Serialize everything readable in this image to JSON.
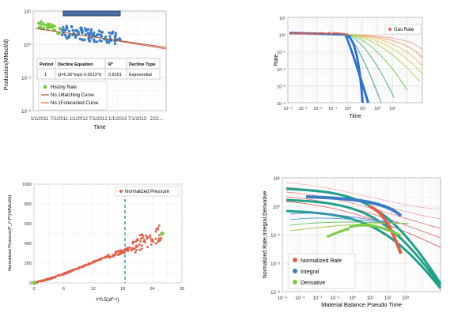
{
  "chart_data": [
    {
      "type": "scatter",
      "ylabel": "Production(MMscf/d)",
      "xlabel": "Time",
      "y_scale": "log",
      "ylim": [
        0.01,
        10
      ],
      "x_tick_labels": [
        "1/1/2011",
        "7/1/2011",
        "1/1/2012",
        "7/1/2012",
        "1/1/2013",
        "7/1/2013",
        "2/21..."
      ],
      "y_tick_labels": [
        "10¹",
        "10⁰",
        "10⁻¹",
        "10⁻²"
      ],
      "table": {
        "headers": [
          "Period",
          "Decline Equation",
          "R²",
          "Decline Type"
        ],
        "rows": [
          [
            "1",
            "Q=6.26*exp(-0.0013*t)",
            "0.8161",
            "Exponential"
          ]
        ]
      },
      "legend": [
        "History Rate",
        "No.1Matching Curve",
        "No.1Forecasted Curve"
      ],
      "colors": {
        "history_green": "#7ac943",
        "history_blue": "#3a7cc4",
        "matching": "#a0522d",
        "forecast": "#e0604a",
        "range_bar": "#4a6fa5"
      },
      "series": [
        {
          "name": "History Rate",
          "x": [
            0,
            3,
            6,
            9,
            12,
            15,
            18,
            21,
            24,
            27,
            30
          ],
          "y": [
            4.2,
            3.8,
            3.4,
            3.2,
            3.0,
            2.8,
            2.6,
            2.5,
            2.3,
            2.2,
            2.0
          ]
        }
      ]
    },
    {
      "type": "line",
      "ylabel": "Rate",
      "xlabel": "Time",
      "x_scale": "log",
      "y_scale": "log",
      "xlim": [
        0.0001,
        100000
      ],
      "ylim": [
        0.0001,
        10
      ],
      "x_tick_labels": [
        "10⁻⁴",
        "10⁻³",
        "10⁻²",
        "10⁻¹",
        "10⁰",
        "10¹",
        "10²",
        "10³"
      ],
      "y_tick_labels": [
        "10¹",
        "10⁰",
        "10⁻¹",
        "10⁻²",
        "10⁻³",
        "10⁻⁴"
      ],
      "legend": [
        "Gas Rate"
      ],
      "colors": {
        "gas_rate": "#e0604a",
        "blue_tail": "#2a6fd6"
      }
    },
    {
      "type": "scatter",
      "ylabel": "Normalized Pressure(P_i²-P²)/MMscf/d)",
      "xlabel": "t^0.5(d⁰⋅⁵)",
      "xlim": [
        0,
        30
      ],
      "ylim": [
        0,
        1000
      ],
      "x_tick_labels": [
        "0",
        "6",
        "12",
        "18",
        "24",
        "30"
      ],
      "y_tick_labels": [
        "0",
        "200",
        "400",
        "600",
        "800",
        "1000"
      ],
      "legend": [
        "Normalized Pressure"
      ],
      "colors": {
        "points": "#e0604a",
        "dashed": "#2a8a8a",
        "end_point": "#7ac943"
      },
      "series": [
        {
          "name": "Normalized Pressure",
          "x": [
            0,
            3,
            6,
            9,
            12,
            15,
            18,
            21,
            24,
            26
          ],
          "y": [
            0,
            40,
            90,
            150,
            210,
            270,
            320,
            370,
            430,
            500
          ]
        }
      ]
    },
    {
      "type": "line",
      "ylabel": "Normalized Rate,Integral,Derivative",
      "xlabel": "Material Balance Pseudo Time",
      "x_scale": "log",
      "y_scale": "log",
      "xlim": [
        0.0001,
        100000
      ],
      "ylim": [
        0.001,
        10
      ],
      "x_tick_labels": [
        "10⁻⁴",
        "10⁻³",
        "10⁻²",
        "10⁻¹",
        "10⁰",
        "10¹",
        "10²",
        "10³"
      ],
      "y_tick_labels": [
        "10¹",
        "10⁰",
        "10⁻¹",
        "10⁻²",
        "10⁻³"
      ],
      "legend": [
        "Normalized Rate",
        "Integral",
        "Derivative"
      ],
      "colors": {
        "normalized_rate": "#e0604a",
        "integral": "#3a7cc4",
        "derivative": "#7ac943",
        "teal": "#1fa08a"
      }
    }
  ]
}
